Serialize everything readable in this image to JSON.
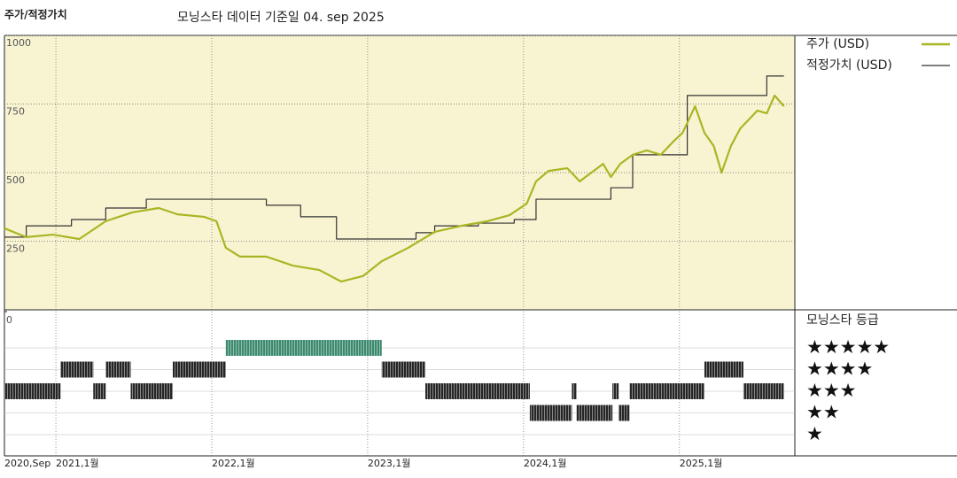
{
  "chart_data": {
    "type": "line",
    "title": "주가/적정가치",
    "subtitle": "모닝스타 데이터 기준일 04. sep 2025",
    "xlim": [
      2020.67,
      2025.74
    ],
    "xticks": [
      {
        "value": 2020.67,
        "label": "2020,Sep"
      },
      {
        "value": 2021,
        "label": "2021,1월"
      },
      {
        "value": 2022,
        "label": "2022,1월"
      },
      {
        "value": 2023,
        "label": "2023,1월"
      },
      {
        "value": 2024,
        "label": "2024,1월"
      },
      {
        "value": 2025,
        "label": "2025,1월"
      }
    ],
    "ylim": [
      0,
      1000
    ],
    "yticks": [
      250,
      500,
      750,
      1000
    ],
    "grid": true,
    "series": [
      {
        "name": "주가 (USD)",
        "color": "#a9b623",
        "x": [
          2020.67,
          2020.81,
          2020.98,
          2021.15,
          2021.32,
          2021.49,
          2021.66,
          2021.78,
          2021.95,
          2022.03,
          2022.09,
          2022.18,
          2022.35,
          2022.52,
          2022.69,
          2022.83,
          2022.97,
          2023.09,
          2023.26,
          2023.43,
          2023.6,
          2023.77,
          2023.91,
          2024.02,
          2024.08,
          2024.16,
          2024.28,
          2024.36,
          2024.51,
          2024.56,
          2024.62,
          2024.7,
          2024.79,
          2024.88,
          2024.96,
          2025.02,
          2025.1,
          2025.16,
          2025.22,
          2025.27,
          2025.33,
          2025.39,
          2025.5,
          2025.56,
          2025.61,
          2025.67
        ],
        "values": [
          297,
          265,
          274,
          258,
          323,
          355,
          371,
          348,
          339,
          323,
          226,
          194,
          194,
          161,
          145,
          103,
          123,
          177,
          226,
          284,
          306,
          323,
          345,
          387,
          468,
          506,
          516,
          468,
          532,
          484,
          532,
          565,
          581,
          565,
          613,
          645,
          742,
          645,
          597,
          500,
          597,
          661,
          726,
          716,
          781,
          742
        ]
      },
      {
        "name": "적정가치 (USD)",
        "color": "#333333",
        "step": "after",
        "x": [
          2020.67,
          2020.81,
          2021.1,
          2021.32,
          2021.58,
          2022.35,
          2022.57,
          2022.8,
          2023.31,
          2023.43,
          2023.71,
          2023.94,
          2024.08,
          2024.56,
          2024.7,
          2025.05,
          2025.56,
          2025.67
        ],
        "values": [
          265,
          306,
          329,
          371,
          403,
          381,
          339,
          258,
          281,
          306,
          316,
          329,
          403,
          445,
          565,
          781,
          852,
          852
        ]
      }
    ],
    "rating": {
      "title": "모닝스타 등급",
      "yticks": [
        0
      ],
      "labels": [
        "★★★★★",
        "★★★★",
        "★★★",
        "★★",
        "★"
      ],
      "colors": [
        "#3b8a6d",
        "#262626"
      ],
      "starts": [
        2020.67,
        2021.03,
        2021.24,
        2021.32,
        2021.48,
        2021.75,
        2022.09,
        2023.09,
        2023.37,
        2024.04,
        2024.31,
        2024.34,
        2024.57,
        2024.61,
        2024.68,
        2025.16,
        2025.41
      ],
      "stars": [
        3,
        4,
        3,
        4,
        3,
        4,
        5,
        4,
        3,
        2,
        3,
        2,
        3,
        2,
        3,
        4,
        3
      ],
      "end": 2025.67
    }
  }
}
